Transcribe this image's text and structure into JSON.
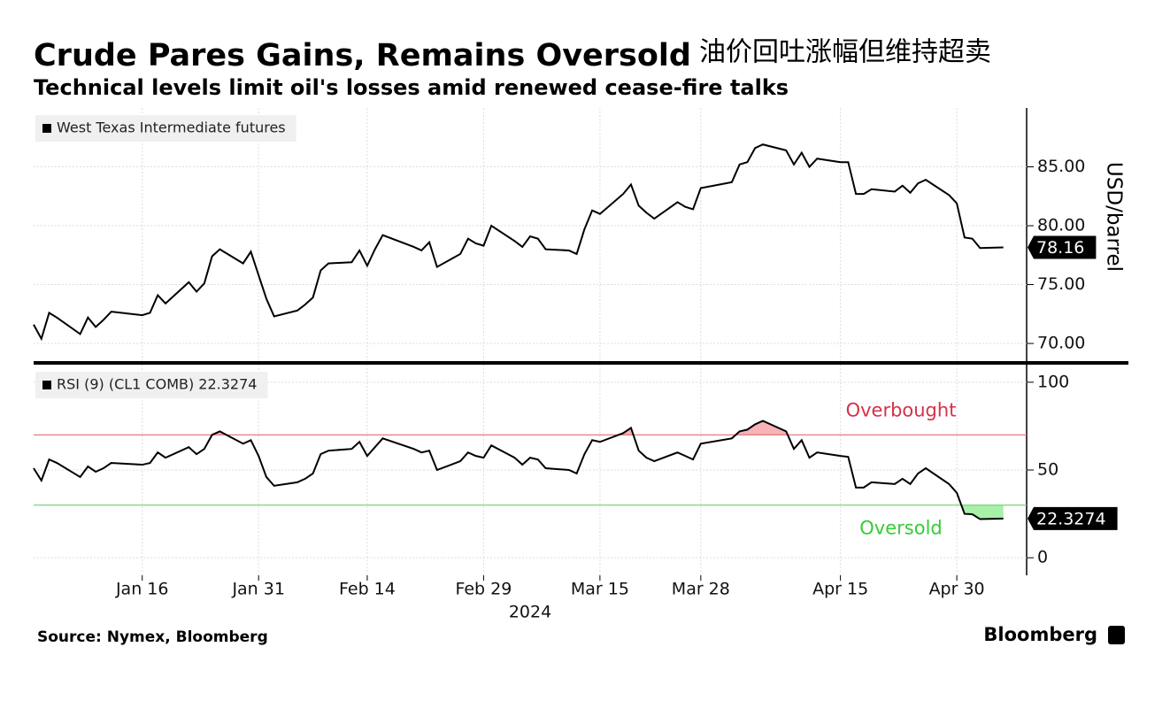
{
  "title": "Crude Pares Gains, Remains Oversold",
  "title_cn": "油价回吐涨幅但维持超卖",
  "subtitle": "Technical levels limit oil's losses amid renewed cease-fire talks",
  "source": "Source: Nymex, Bloomberg",
  "brand": "Bloomberg",
  "chart_data": [
    {
      "type": "line",
      "ylabel": "USD/barrel",
      "ylim": [
        68.5,
        90
      ],
      "yticks": [
        {
          "value": 70,
          "label": "70.00"
        },
        {
          "value": 75,
          "label": "75.00"
        },
        {
          "value": 80,
          "label": "80.00"
        },
        {
          "value": 85,
          "label": "85.00"
        }
      ],
      "xlim": [
        "2024-01-02",
        "2024-05-09"
      ],
      "grid": true,
      "x": [
        "2024-01-02",
        "2024-01-03",
        "2024-01-04",
        "2024-01-05",
        "2024-01-08",
        "2024-01-09",
        "2024-01-10",
        "2024-01-11",
        "2024-01-12",
        "2024-01-16",
        "2024-01-17",
        "2024-01-18",
        "2024-01-19",
        "2024-01-22",
        "2024-01-23",
        "2024-01-24",
        "2024-01-25",
        "2024-01-26",
        "2024-01-29",
        "2024-01-30",
        "2024-01-31",
        "2024-02-01",
        "2024-02-02",
        "2024-02-05",
        "2024-02-06",
        "2024-02-07",
        "2024-02-08",
        "2024-02-09",
        "2024-02-12",
        "2024-02-13",
        "2024-02-14",
        "2024-02-15",
        "2024-02-16",
        "2024-02-20",
        "2024-02-21",
        "2024-02-22",
        "2024-02-23",
        "2024-02-26",
        "2024-02-27",
        "2024-02-28",
        "2024-02-29",
        "2024-03-01",
        "2024-03-04",
        "2024-03-05",
        "2024-03-06",
        "2024-03-07",
        "2024-03-08",
        "2024-03-11",
        "2024-03-12",
        "2024-03-13",
        "2024-03-14",
        "2024-03-15",
        "2024-03-18",
        "2024-03-19",
        "2024-03-20",
        "2024-03-21",
        "2024-03-22",
        "2024-03-25",
        "2024-03-26",
        "2024-03-27",
        "2024-03-28",
        "2024-04-01",
        "2024-04-02",
        "2024-04-03",
        "2024-04-04",
        "2024-04-05",
        "2024-04-08",
        "2024-04-09",
        "2024-04-10",
        "2024-04-11",
        "2024-04-12",
        "2024-04-15",
        "2024-04-16",
        "2024-04-17",
        "2024-04-18",
        "2024-04-19",
        "2024-04-22",
        "2024-04-23",
        "2024-04-24",
        "2024-04-25",
        "2024-04-26",
        "2024-04-29",
        "2024-04-30",
        "2024-05-01",
        "2024-05-02",
        "2024-05-03",
        "2024-05-06"
      ],
      "series": [
        {
          "name": "West Texas Intermediate futures",
          "color": "#000000",
          "values": [
            71.6,
            70.4,
            72.6,
            72.2,
            70.8,
            72.2,
            71.4,
            72.0,
            72.7,
            72.4,
            72.6,
            74.1,
            73.4,
            75.2,
            74.4,
            75.1,
            77.4,
            78.0,
            76.8,
            77.8,
            75.8,
            73.8,
            72.3,
            72.8,
            73.3,
            73.9,
            76.2,
            76.8,
            76.9,
            77.9,
            76.6,
            78.0,
            79.2,
            78.2,
            77.9,
            78.6,
            76.5,
            77.6,
            78.9,
            78.5,
            78.3,
            80.0,
            78.7,
            78.2,
            79.1,
            78.9,
            78.0,
            77.9,
            77.6,
            79.7,
            81.3,
            81.0,
            82.7,
            83.5,
            81.7,
            81.1,
            80.6,
            82.0,
            81.6,
            81.4,
            83.2,
            83.7,
            85.2,
            85.4,
            86.6,
            86.9,
            86.4,
            85.2,
            86.2,
            85.0,
            85.7,
            85.4,
            85.4,
            82.7,
            82.7,
            83.1,
            82.9,
            83.4,
            82.8,
            83.6,
            83.9,
            82.6,
            81.9,
            79.0,
            78.9,
            78.1,
            78.16
          ]
        }
      ]
    },
    {
      "type": "line",
      "xlabel": "2024",
      "ylim": [
        -10,
        110
      ],
      "yticks": [
        0,
        50,
        100
      ],
      "xlim": [
        "2024-01-02",
        "2024-05-09"
      ],
      "grid": true,
      "xticks": [
        {
          "value": "2024-01-16",
          "label": "Jan 16"
        },
        {
          "value": "2024-01-31",
          "label": "Jan 31"
        },
        {
          "value": "2024-02-14",
          "label": "Feb 14"
        },
        {
          "value": "2024-02-29",
          "label": "Feb 29"
        },
        {
          "value": "2024-03-15",
          "label": "Mar 15"
        },
        {
          "value": "2024-03-28",
          "label": "Mar 28"
        },
        {
          "value": "2024-04-15",
          "label": "Apr 15"
        },
        {
          "value": "2024-04-30",
          "label": "Apr 30"
        }
      ],
      "levels": [
        {
          "value": 70,
          "label": "Overbought",
          "color": "#e06b6b",
          "text_color": "#d9304a",
          "fill": "#f7b3b8",
          "side": "above"
        },
        {
          "value": 30,
          "label": "Oversold",
          "color": "#6fcf6f",
          "text_color": "#35cc35",
          "fill": "#a8f0a8",
          "side": "below"
        }
      ],
      "x": [
        "2024-01-02",
        "2024-01-03",
        "2024-01-04",
        "2024-01-05",
        "2024-01-08",
        "2024-01-09",
        "2024-01-10",
        "2024-01-11",
        "2024-01-12",
        "2024-01-16",
        "2024-01-17",
        "2024-01-18",
        "2024-01-19",
        "2024-01-22",
        "2024-01-23",
        "2024-01-24",
        "2024-01-25",
        "2024-01-26",
        "2024-01-29",
        "2024-01-30",
        "2024-01-31",
        "2024-02-01",
        "2024-02-02",
        "2024-02-05",
        "2024-02-06",
        "2024-02-07",
        "2024-02-08",
        "2024-02-09",
        "2024-02-12",
        "2024-02-13",
        "2024-02-14",
        "2024-02-15",
        "2024-02-16",
        "2024-02-20",
        "2024-02-21",
        "2024-02-22",
        "2024-02-23",
        "2024-02-26",
        "2024-02-27",
        "2024-02-28",
        "2024-02-29",
        "2024-03-01",
        "2024-03-04",
        "2024-03-05",
        "2024-03-06",
        "2024-03-07",
        "2024-03-08",
        "2024-03-11",
        "2024-03-12",
        "2024-03-13",
        "2024-03-14",
        "2024-03-15",
        "2024-03-18",
        "2024-03-19",
        "2024-03-20",
        "2024-03-21",
        "2024-03-22",
        "2024-03-25",
        "2024-03-26",
        "2024-03-27",
        "2024-03-28",
        "2024-04-01",
        "2024-04-02",
        "2024-04-03",
        "2024-04-04",
        "2024-04-05",
        "2024-04-08",
        "2024-04-09",
        "2024-04-10",
        "2024-04-11",
        "2024-04-12",
        "2024-04-15",
        "2024-04-16",
        "2024-04-17",
        "2024-04-18",
        "2024-04-19",
        "2024-04-22",
        "2024-04-23",
        "2024-04-24",
        "2024-04-25",
        "2024-04-26",
        "2024-04-29",
        "2024-04-30",
        "2024-05-01",
        "2024-05-02",
        "2024-05-03",
        "2024-05-06"
      ],
      "series": [
        {
          "name": "RSI (9) (CL1 COMB) 22.3274",
          "color": "#000000",
          "values": [
            51,
            44,
            56,
            54,
            46,
            52,
            49,
            51,
            54,
            53,
            54,
            60,
            57,
            63,
            59,
            62,
            70,
            72,
            65,
            67,
            58,
            46,
            41,
            43,
            45,
            48,
            59,
            61,
            62,
            66,
            58,
            63,
            68,
            62,
            60,
            61,
            50,
            55,
            60,
            58,
            57,
            64,
            57,
            53,
            57,
            56,
            51,
            50,
            48,
            59,
            67,
            66,
            71,
            74,
            61,
            57,
            55,
            60,
            58,
            56,
            65,
            68,
            72,
            73,
            76,
            78,
            72,
            62,
            67,
            57,
            60,
            58,
            57.5,
            40,
            40,
            43,
            42,
            45,
            42,
            48,
            51,
            42,
            37,
            25,
            24.8,
            22,
            22.3274
          ]
        }
      ]
    }
  ]
}
